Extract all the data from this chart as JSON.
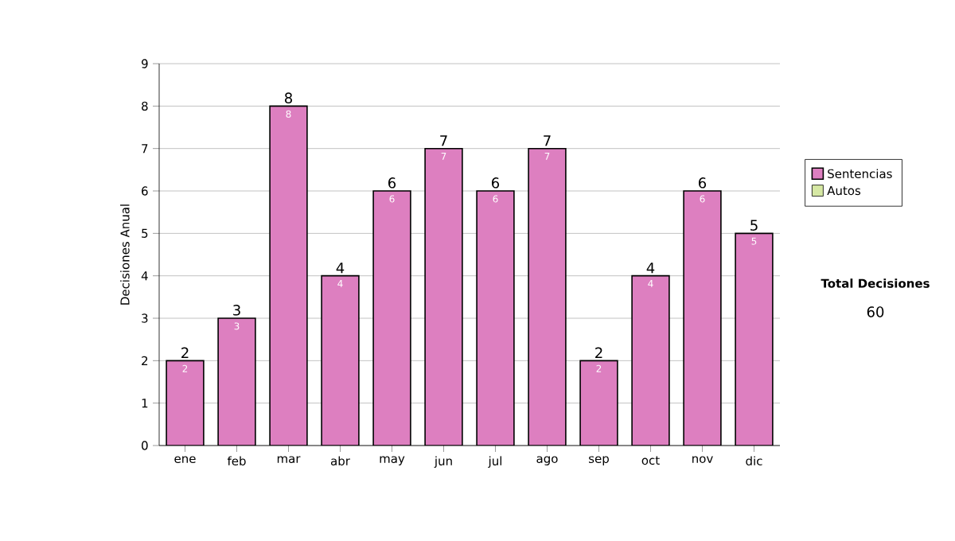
{
  "chart_data": {
    "type": "bar",
    "ylabel": "Decisiones Anual",
    "categories": [
      "ene",
      "feb",
      "mar",
      "abr",
      "may",
      "jun",
      "jul",
      "ago",
      "sep",
      "oct",
      "nov",
      "dic"
    ],
    "series": [
      {
        "name": "Sentencias",
        "color": "#dd7fc0",
        "values": [
          2,
          3,
          8,
          4,
          6,
          7,
          6,
          7,
          2,
          4,
          6,
          5
        ],
        "value_labels": [
          "2",
          "3",
          "8",
          "4",
          "6",
          "7",
          "6",
          "7",
          "2",
          "4",
          "6",
          "5"
        ]
      },
      {
        "name": "Autos",
        "color": "#d6e8a4",
        "values": [
          null,
          null,
          null,
          null,
          null,
          null,
          null,
          null,
          null,
          null,
          null,
          null
        ]
      }
    ],
    "ylim": [
      0,
      9
    ],
    "yticks": [
      0,
      1,
      2,
      3,
      4,
      5,
      6,
      7,
      8,
      9
    ],
    "grid": "y",
    "legend": "right",
    "data_labels": true,
    "annotations": [
      "Total Decisiones",
      "60"
    ]
  }
}
